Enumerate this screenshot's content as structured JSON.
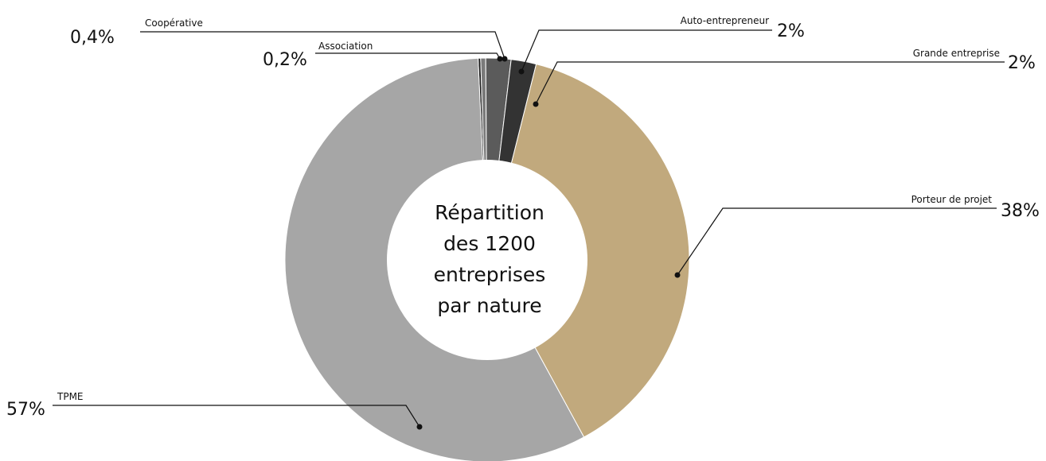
{
  "chart_data": {
    "type": "pie",
    "variant": "donut",
    "center_text": [
      "Répartition",
      "des 1200",
      "entreprises",
      "par nature"
    ],
    "slices": [
      {
        "label": "Association",
        "percent_label": "0,2%",
        "value": 0.2,
        "color": "#1a1a1a"
      },
      {
        "label": "Coopérative",
        "percent_label": "0,4%",
        "value": 0.4,
        "color": "#7a7a7a"
      },
      {
        "label": "Auto-entrepreneur",
        "percent_label": "2%",
        "value": 2,
        "color": "#5b5b5b"
      },
      {
        "label": "Grande entreprise",
        "percent_label": "2%",
        "value": 2,
        "color": "#333333"
      },
      {
        "label": "Porteur de projet",
        "percent_label": "38%",
        "value": 38,
        "color": "#c1a97d"
      },
      {
        "label": "TPME",
        "percent_label": "57%",
        "value": 57,
        "color": "#a6a6a6"
      }
    ]
  }
}
